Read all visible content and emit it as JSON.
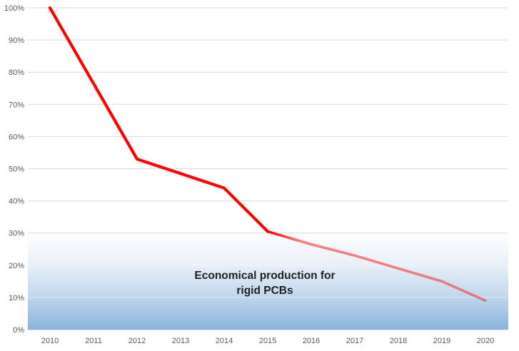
{
  "chart_data": {
    "type": "line",
    "title": "",
    "xlabel": "",
    "ylabel": "",
    "x": [
      2010,
      2011,
      2012,
      2013,
      2014,
      2015,
      2016,
      2017,
      2018,
      2019,
      2020
    ],
    "x_labels": [
      "2010",
      "2011",
      "2012",
      "2013",
      "2014",
      "2015",
      "2016",
      "2017",
      "2018",
      "2019",
      "2020"
    ],
    "series": [
      {
        "name": "share-trend-line",
        "values": [
          100,
          76.5,
          53,
          48.5,
          44,
          30.5,
          26.5,
          23,
          19,
          15,
          9
        ],
        "color": "#FF0000",
        "fade": {
          "start_index": 5,
          "stops": [
            {
              "offset": 0,
              "opacity": 1
            },
            {
              "offset": 0.15,
              "opacity": 0.5
            },
            {
              "offset": 1,
              "opacity": 0.44
            }
          ]
        }
      }
    ],
    "ylim": [
      0,
      100
    ],
    "yticks": [
      "0%",
      "10%",
      "20%",
      "30%",
      "40%",
      "50%",
      "60%",
      "70%",
      "80%",
      "90%",
      "100%"
    ],
    "ytick_values": [
      0,
      10,
      20,
      30,
      40,
      50,
      60,
      70,
      80,
      90,
      100
    ],
    "grid": "horizontal",
    "legend": "none",
    "annotation": {
      "line1": "Economical production for",
      "line2": "rigid PCBs"
    },
    "shaded_zone": {
      "from": 0,
      "to": 30,
      "gradient": [
        {
          "offset": 0,
          "color": "#FEFEFF"
        },
        {
          "offset": 0.32,
          "color": "#E9F0F8"
        },
        {
          "offset": 0.62,
          "color": "#C6DAEE"
        },
        {
          "offset": 1,
          "color": "#8CB3DD"
        }
      ]
    }
  },
  "styles": {
    "background": "#FFFFFF",
    "gridline_color": "#D9D9D9",
    "band_gridline_color": "rgba(255,255,255,0.5)",
    "baseline_color": "rgba(125,165,210,0.6)",
    "tick_label_color": "#595959",
    "annotation_color": "#1F1F1F",
    "line_color": "#FF0000"
  }
}
